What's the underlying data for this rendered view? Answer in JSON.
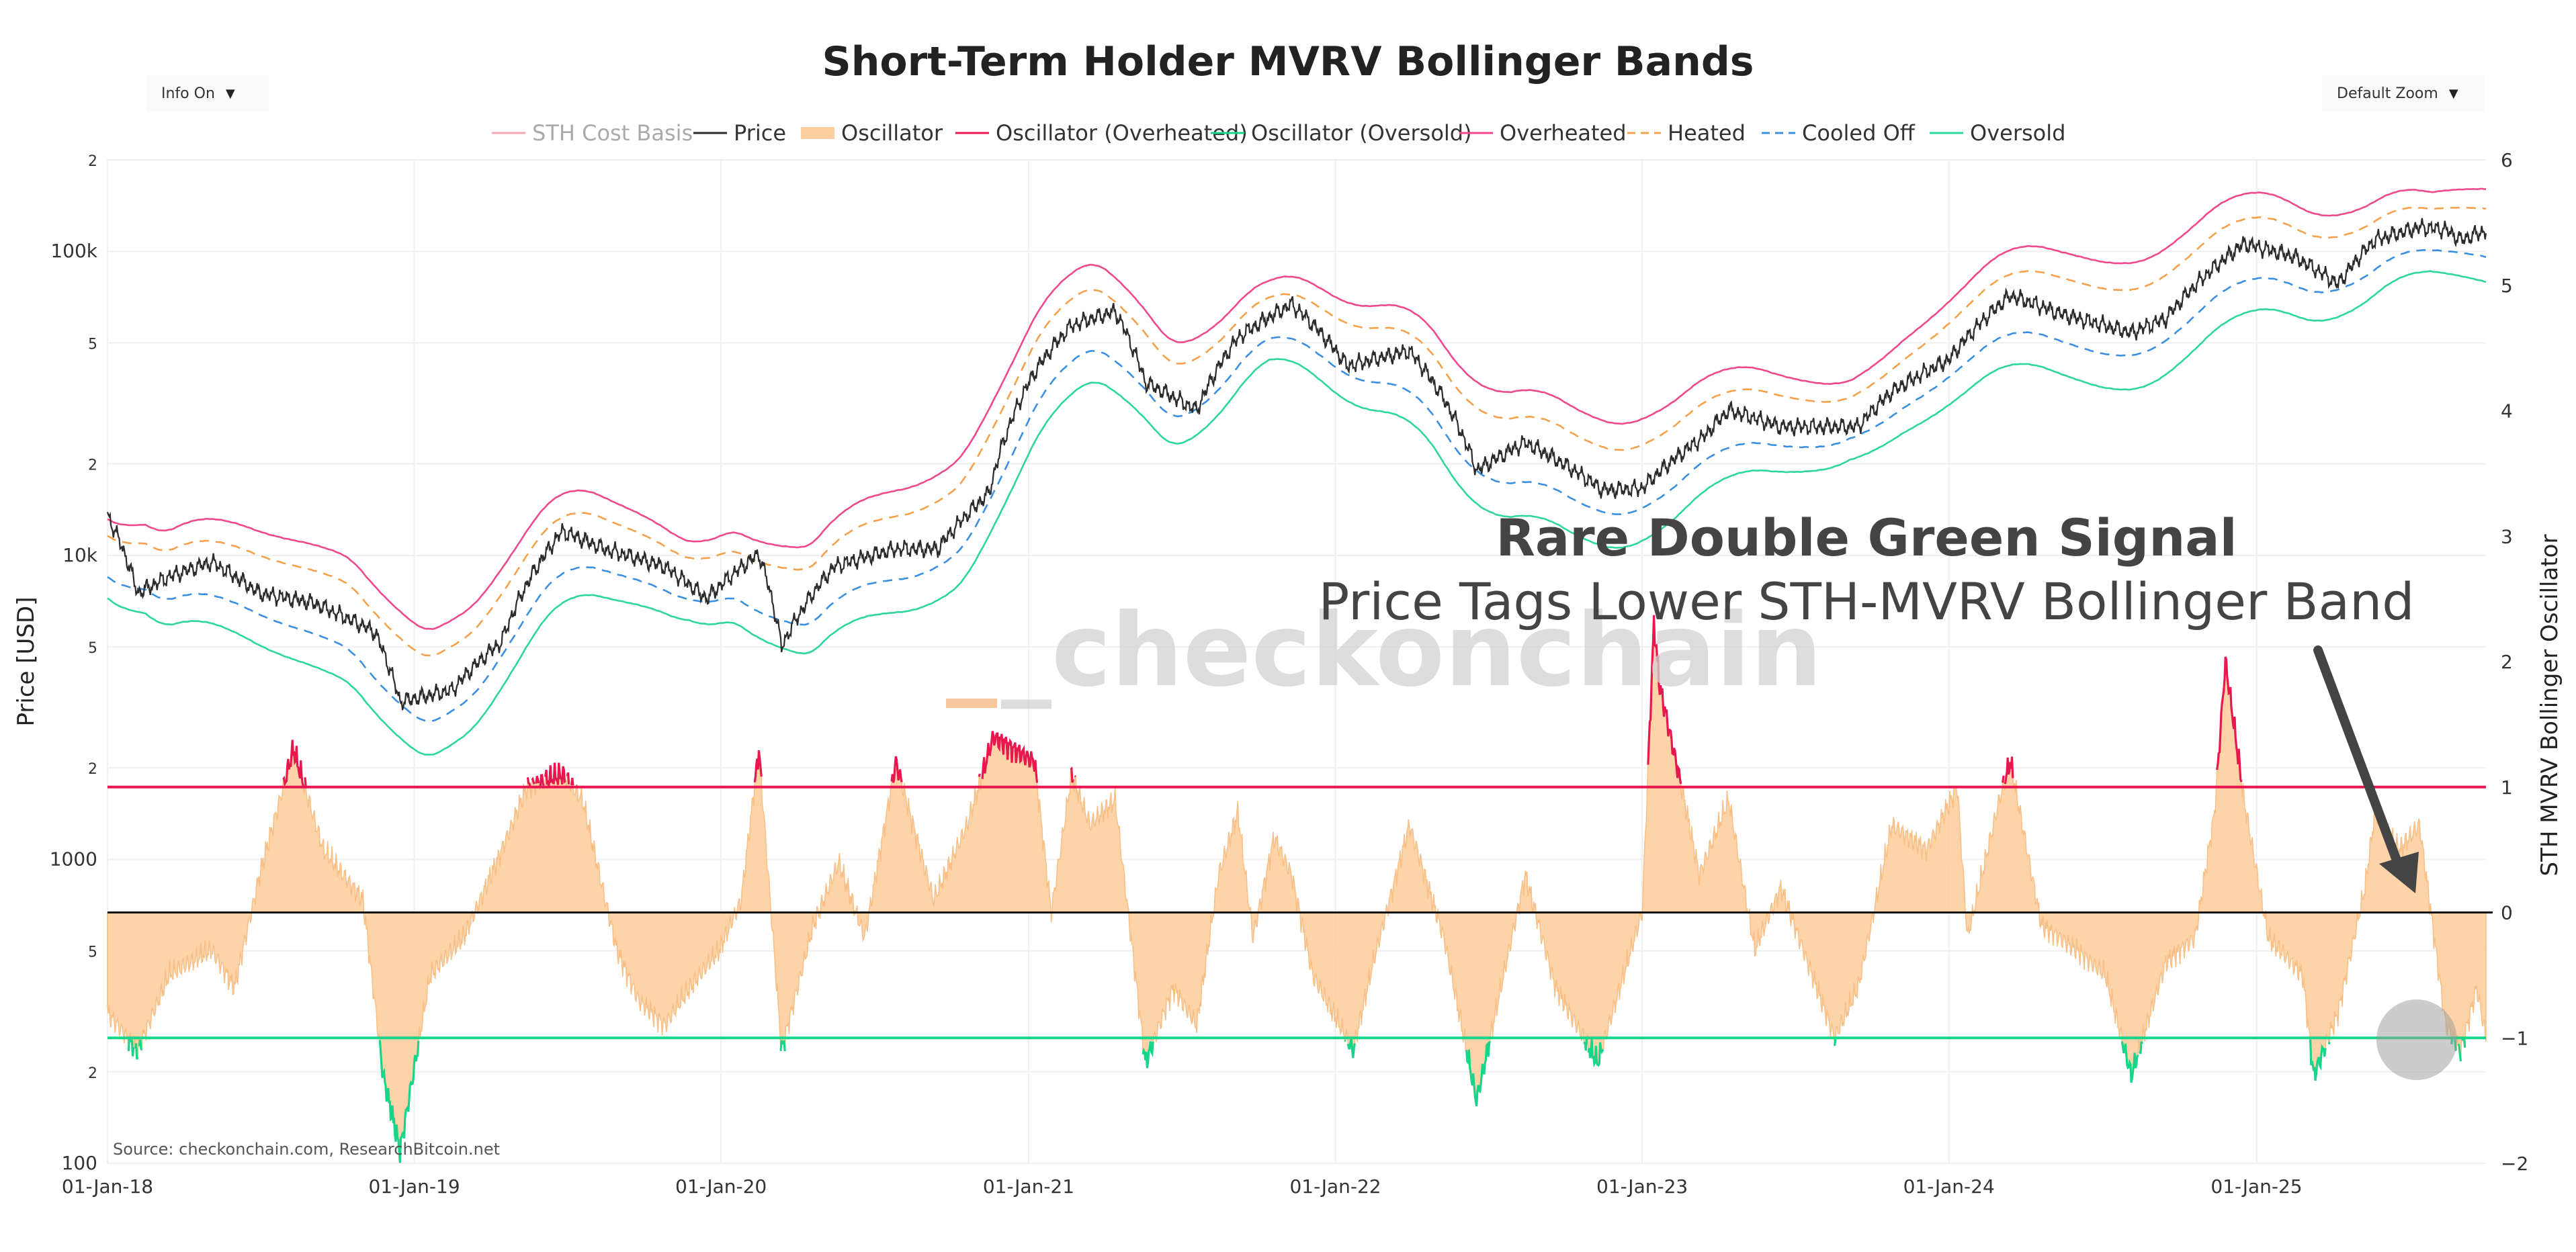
{
  "controls": {
    "info_label": "Info On",
    "zoom_label": "Default Zoom"
  },
  "colors": {
    "price": "#2b2b2b",
    "cost_basis": "#f4a6b8",
    "oscillator_fill": "#fdcf9e",
    "overheated_osc": "#e8174f",
    "oversold_osc": "#17d68a",
    "band_overheated": "#f0488c",
    "band_heated": "#f5a04a",
    "band_cooled": "#3a8fe0",
    "band_oversold": "#2dd6a0",
    "callout_arrow": "#444444"
  },
  "chart_data": {
    "type": "line",
    "title": "Short-Term Holder MVRV Bollinger Bands",
    "ylabel_left": "Price [USD]",
    "ylabel_right": "STH MVRV Bollinger Oscillator",
    "x_ticks": [
      "01-Jan-18",
      "01-Jan-19",
      "01-Jan-20",
      "01-Jan-21",
      "01-Jan-22",
      "01-Jan-23",
      "01-Jan-24",
      "01-Jan-25"
    ],
    "x_range": [
      "2018-01-01",
      "2025-10-01"
    ],
    "y_left_ticks": [
      "100",
      "2",
      "5",
      "1000",
      "2",
      "5",
      "10k",
      "2",
      "5",
      "100k",
      "2"
    ],
    "y_left_range": [
      100,
      200000
    ],
    "y_left_scale": "log",
    "y_right_ticks": [
      "−2",
      "−1",
      "0",
      "1",
      "2",
      "3",
      "4",
      "5",
      "6"
    ],
    "y_right_range": [
      -2,
      6
    ],
    "legend": [
      "STH Cost Basis",
      "Price",
      "Oscillator",
      "Oscillator (Overheated)",
      "Oscillator (Oversold)",
      "Overheated",
      "Heated",
      "Cooled Off",
      "Oversold"
    ],
    "legend_position": "top",
    "grid": true,
    "overheated_level": 1,
    "oversold_level": -1,
    "zero_level": 0,
    "watermark": "_checkonchain",
    "source": "Source: checkonchain.com, ResearchBitcoin.net",
    "annotation_title": "Rare Double Green Signal",
    "annotation_subtitle": "Price Tags Lower STH-MVRV Bollinger Band",
    "price_series": {
      "name": "Price",
      "x": [
        "2018-01-01",
        "2018-02-06",
        "2018-03-15",
        "2018-05-05",
        "2018-07-01",
        "2018-09-01",
        "2018-11-15",
        "2018-12-15",
        "2019-02-15",
        "2019-04-15",
        "2019-06-26",
        "2019-08-15",
        "2019-10-25",
        "2019-12-15",
        "2020-02-15",
        "2020-03-13",
        "2020-05-15",
        "2020-07-27",
        "2020-09-15",
        "2020-11-15",
        "2021-01-08",
        "2021-02-21",
        "2021-04-14",
        "2021-05-20",
        "2021-07-20",
        "2021-09-07",
        "2021-11-10",
        "2022-01-15",
        "2022-03-30",
        "2022-06-18",
        "2022-08-15",
        "2022-11-15",
        "2023-01-01",
        "2023-03-15",
        "2023-04-14",
        "2023-06-15",
        "2023-09-15",
        "2023-10-25",
        "2024-01-01",
        "2024-03-14",
        "2024-05-15",
        "2024-08-05",
        "2024-09-15",
        "2024-11-15",
        "2024-12-17",
        "2025-02-15",
        "2025-04-08",
        "2025-05-22",
        "2025-07-14",
        "2025-08-14",
        "2025-09-01",
        "2025-10-01"
      ],
      "values": [
        13500,
        7500,
        8500,
        9500,
        7500,
        7000,
        5600,
        3300,
        3600,
        5200,
        12000,
        10500,
        9200,
        7200,
        10100,
        5000,
        9200,
        10500,
        10500,
        16000,
        40000,
        57000,
        63500,
        37000,
        30000,
        52000,
        67000,
        42000,
        47000,
        19000,
        23500,
        16400,
        16600,
        24500,
        30000,
        26500,
        26500,
        34500,
        44000,
        71500,
        62000,
        54000,
        60000,
        90000,
        106000,
        96000,
        78000,
        109000,
        120000,
        118000,
        109000,
        117000
      ]
    },
    "osc_series": {
      "name": "Oscillator",
      "x": [
        "2018-01-01",
        "2018-02-06",
        "2018-03-15",
        "2018-05-05",
        "2018-06-01",
        "2018-07-01",
        "2018-08-10",
        "2018-09-15",
        "2018-11-01",
        "2018-11-25",
        "2018-12-15",
        "2019-01-20",
        "2019-03-01",
        "2019-04-15",
        "2019-05-15",
        "2019-06-26",
        "2019-07-20",
        "2019-08-30",
        "2019-09-25",
        "2019-10-26",
        "2019-11-25",
        "2019-12-30",
        "2020-01-25",
        "2020-02-15",
        "2020-03-13",
        "2020-04-20",
        "2020-05-20",
        "2020-06-20",
        "2020-07-27",
        "2020-09-10",
        "2020-10-20",
        "2020-11-20",
        "2021-01-08",
        "2021-01-28",
        "2021-02-21",
        "2021-03-15",
        "2021-04-14",
        "2021-05-20",
        "2021-06-22",
        "2021-07-20",
        "2021-08-15",
        "2021-09-07",
        "2021-09-25",
        "2021-10-20",
        "2021-11-10",
        "2021-12-05",
        "2022-01-22",
        "2022-02-15",
        "2022-03-30",
        "2022-05-10",
        "2022-06-18",
        "2022-08-15",
        "2022-09-20",
        "2022-11-09",
        "2022-12-10",
        "2023-01-01",
        "2023-01-15",
        "2023-01-22",
        "2023-02-20",
        "2023-03-10",
        "2023-04-14",
        "2023-05-15",
        "2023-06-15",
        "2023-08-18",
        "2023-09-15",
        "2023-10-25",
        "2023-12-05",
        "2024-01-11",
        "2024-01-23",
        "2024-03-01",
        "2024-03-14",
        "2024-04-20",
        "2024-06-01",
        "2024-07-05",
        "2024-08-05",
        "2024-09-15",
        "2024-10-20",
        "2024-11-12",
        "2024-11-25",
        "2024-12-17",
        "2025-01-15",
        "2025-02-25",
        "2025-03-10",
        "2025-04-08",
        "2025-05-10",
        "2025-05-22",
        "2025-06-20",
        "2025-07-14",
        "2025-08-14",
        "2025-09-01",
        "2025-09-20",
        "2025-10-01"
      ],
      "values": [
        -0.8,
        -1.1,
        -0.5,
        -0.3,
        -0.6,
        0.3,
        1.3,
        0.5,
        0.1,
        -1.3,
        -1.9,
        -0.5,
        -0.2,
        0.5,
        1.0,
        1.1,
        0.9,
        -0.3,
        -0.7,
        -0.9,
        -0.6,
        -0.3,
        0.1,
        1.3,
        -1.1,
        -0.1,
        0.4,
        -0.2,
        1.2,
        0.1,
        0.7,
        1.4,
        1.2,
        0.0,
        1.1,
        0.7,
        0.9,
        -1.2,
        -0.6,
        -0.9,
        0.3,
        0.8,
        -0.2,
        0.6,
        0.3,
        -0.5,
        -1.1,
        -0.4,
        0.7,
        -0.2,
        -1.5,
        0.3,
        -0.6,
        -1.2,
        -0.5,
        0.0,
        2.3,
        1.8,
        0.9,
        0.3,
        0.9,
        -0.3,
        0.2,
        -1.0,
        -0.6,
        0.7,
        0.5,
        1.0,
        -0.2,
        0.9,
        1.2,
        -0.1,
        -0.3,
        -0.5,
        -1.3,
        -0.4,
        -0.2,
        0.8,
        2.0,
        0.9,
        -0.2,
        -0.5,
        -1.3,
        -0.8,
        0.2,
        0.8,
        0.5,
        0.7,
        -0.9,
        -1.1,
        -0.6,
        -1.0
      ]
    }
  }
}
